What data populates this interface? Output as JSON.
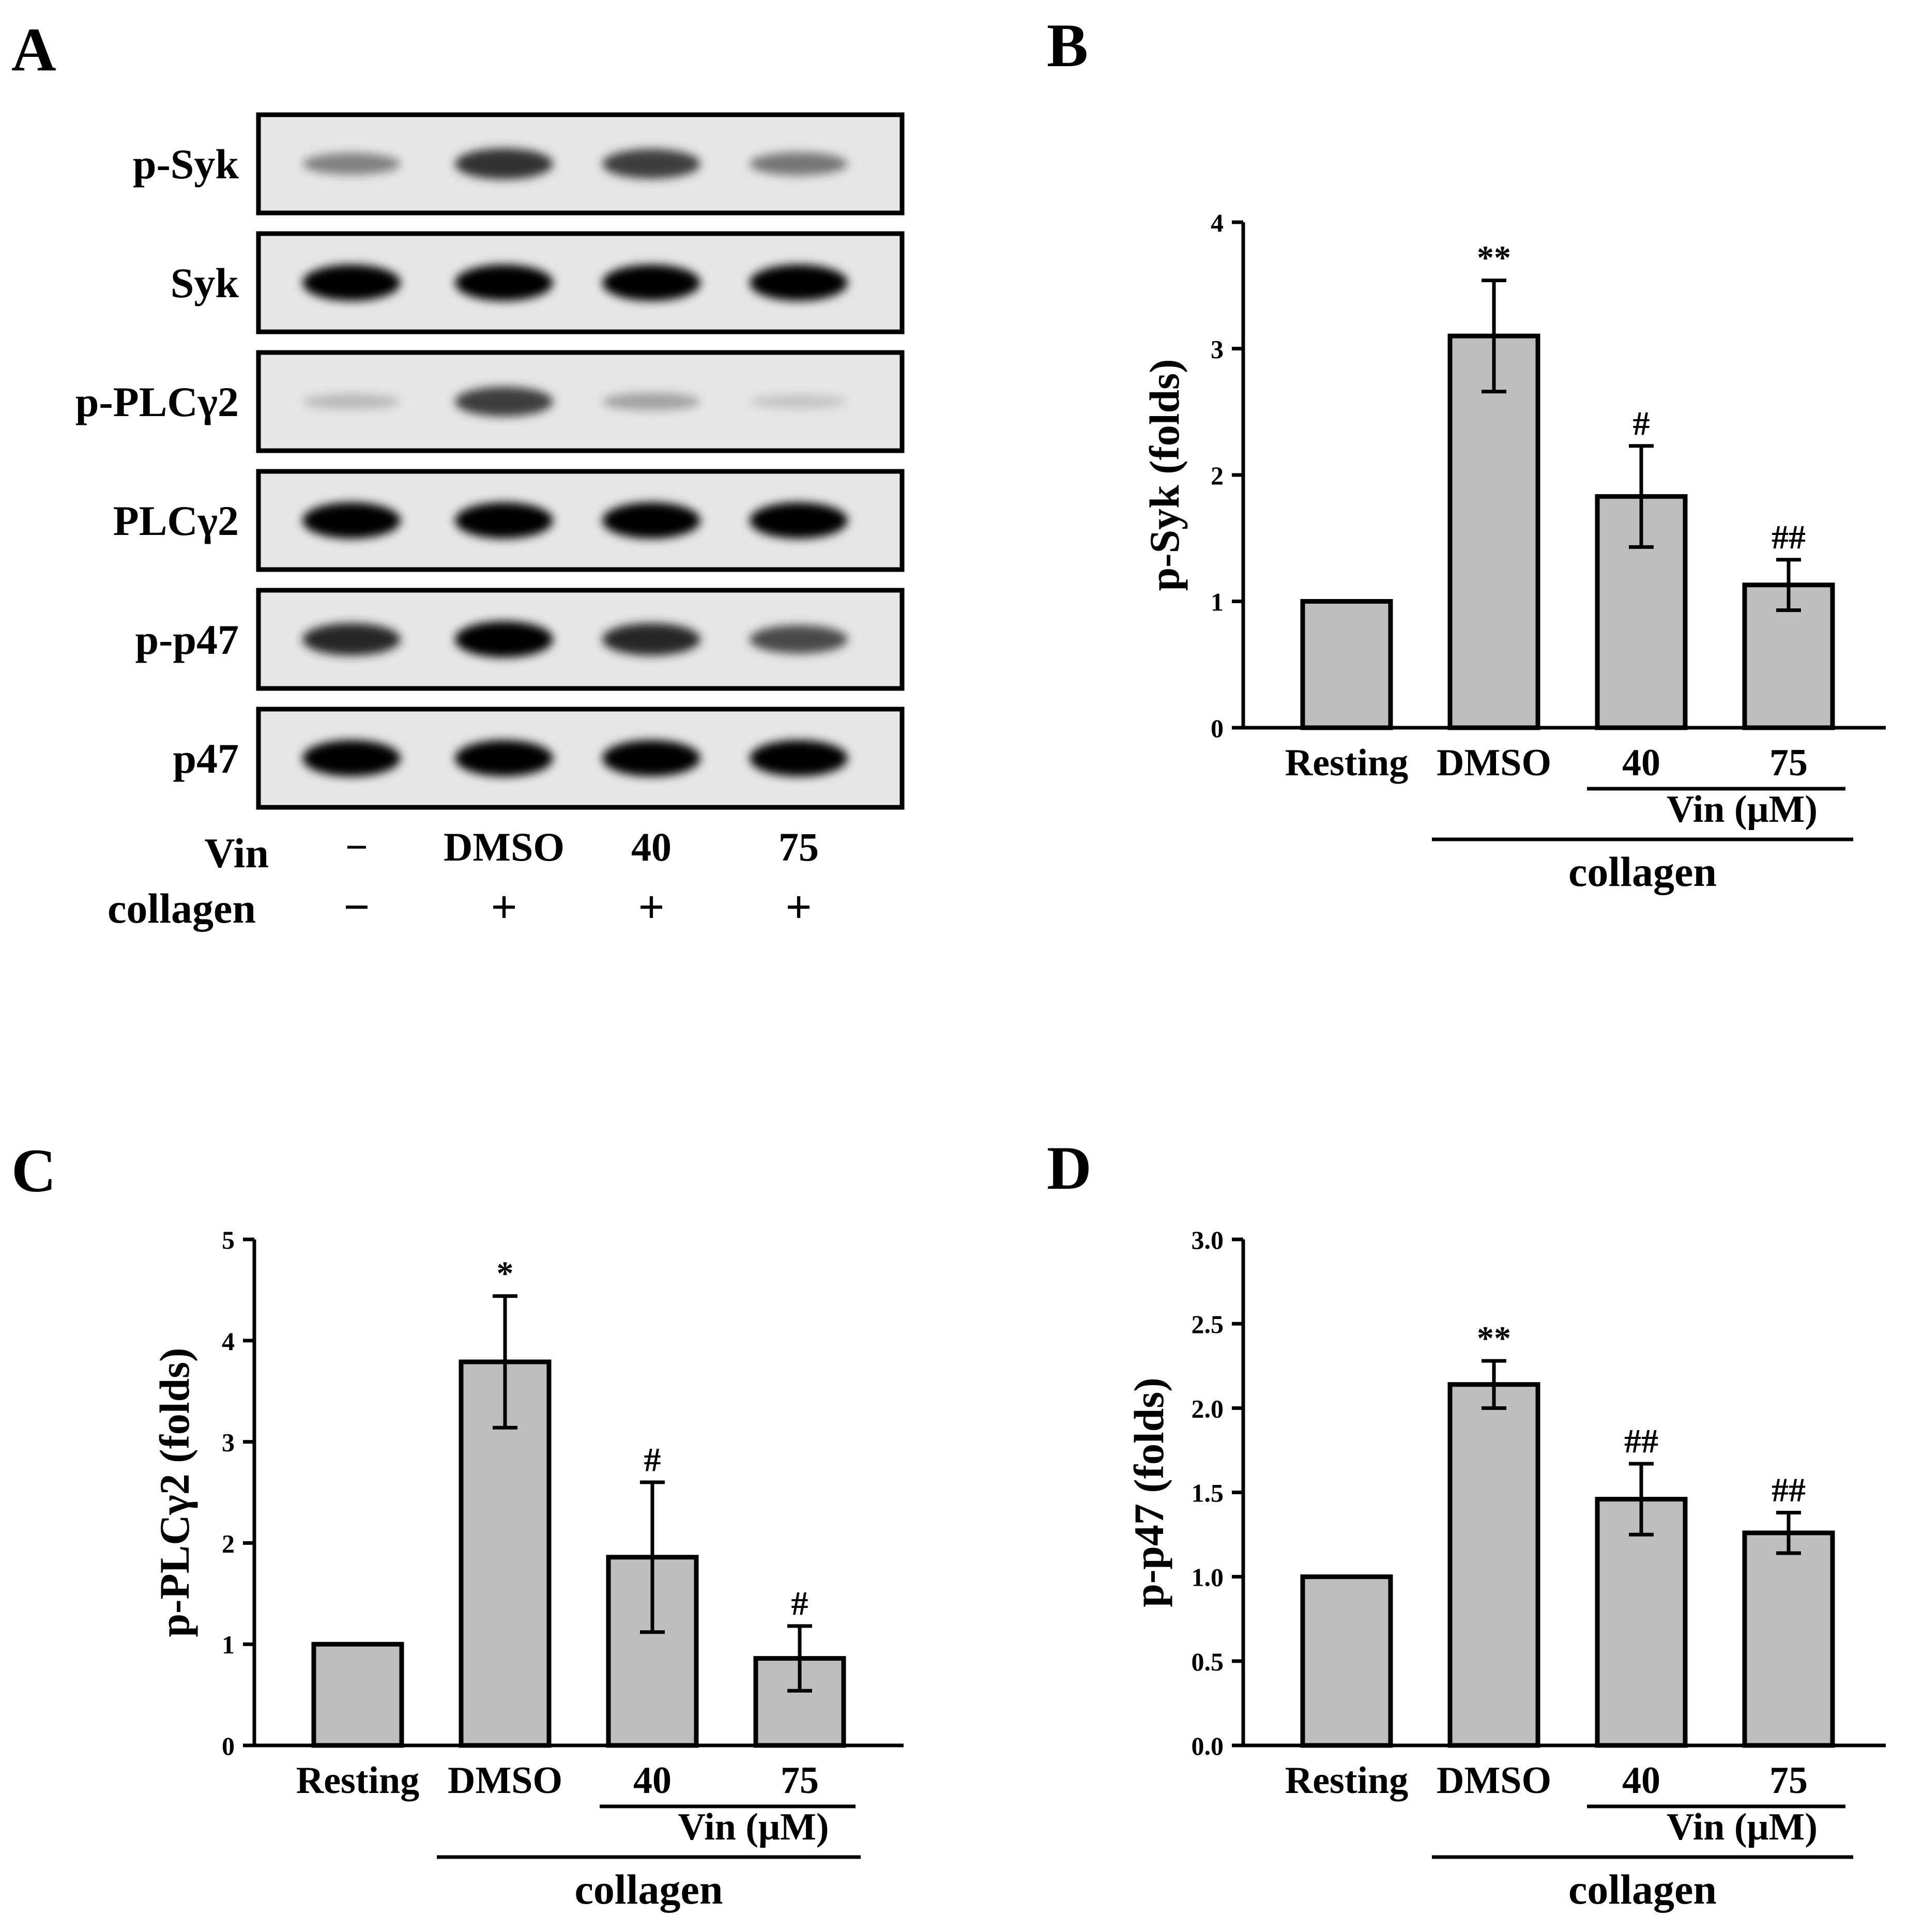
{
  "panel_labels": [
    "A",
    "B",
    "C",
    "D"
  ],
  "blot": {
    "rows": [
      {
        "label": "p-Syk",
        "band_intensity": [
          0.45,
          0.8,
          0.75,
          0.5
        ]
      },
      {
        "label": "Syk",
        "band_intensity": [
          1,
          1,
          1,
          1
        ]
      },
      {
        "label": "p-PLCγ2",
        "band_intensity": [
          0.2,
          0.75,
          0.3,
          0.15
        ]
      },
      {
        "label": "PLCγ2",
        "band_intensity": [
          1,
          1,
          1,
          1
        ]
      },
      {
        "label": "p-p47",
        "band_intensity": [
          0.85,
          1,
          0.85,
          0.7
        ]
      },
      {
        "label": "p47",
        "band_intensity": [
          1,
          1,
          1,
          1
        ]
      }
    ],
    "conditions": {
      "vin_label": "Vin",
      "collagen_label": "collagen",
      "vin": [
        "−",
        "DMSO",
        "40",
        "75"
      ],
      "collagen": [
        "−",
        "+",
        "+",
        "+"
      ]
    }
  },
  "chart_data": [
    {
      "panel": "B",
      "type": "bar",
      "categories": [
        "Resting",
        "DMSO",
        "40",
        "75"
      ],
      "values": [
        1.0,
        3.1,
        1.83,
        1.13
      ],
      "errors": [
        0,
        0.44,
        0.4,
        0.2
      ],
      "significance": [
        "",
        "**",
        "#",
        "##"
      ],
      "ylabel": "p-Syk (folds)",
      "ylim": [
        0,
        4
      ],
      "yticks": [
        "0",
        "1",
        "2",
        "3",
        "4"
      ],
      "group_labels": {
        "vin": "Vin (μM)",
        "collagen": "collagen"
      },
      "bar_color": "#bcbec0"
    },
    {
      "panel": "C",
      "type": "bar",
      "categories": [
        "Resting",
        "DMSO",
        "40",
        "75"
      ],
      "values": [
        1.0,
        3.79,
        1.86,
        0.86
      ],
      "errors": [
        0,
        0.65,
        0.74,
        0.32
      ],
      "significance": [
        "",
        "*",
        "#",
        "#"
      ],
      "ylabel": "p-PLCγ2 (folds)",
      "ylim": [
        0,
        5
      ],
      "yticks": [
        "0",
        "1",
        "2",
        "3",
        "4",
        "5"
      ],
      "group_labels": {
        "vin": "Vin (μM)",
        "collagen": "collagen"
      },
      "bar_color": "#bcbec0"
    },
    {
      "panel": "D",
      "type": "bar",
      "categories": [
        "Resting",
        "DMSO",
        "40",
        "75"
      ],
      "values": [
        1.0,
        2.14,
        1.46,
        1.26
      ],
      "errors": [
        0,
        0.14,
        0.21,
        0.12
      ],
      "significance": [
        "",
        "**",
        "##",
        "##"
      ],
      "ylabel": "p-p47 (folds)",
      "ylim": [
        0,
        3.0
      ],
      "yticks": [
        "0.0",
        "0.5",
        "1.0",
        "1.5",
        "2.0",
        "2.5",
        "3.0"
      ],
      "group_labels": {
        "vin": "Vin (μM)",
        "collagen": "collagen"
      },
      "bar_color": "#bcbec0"
    }
  ]
}
